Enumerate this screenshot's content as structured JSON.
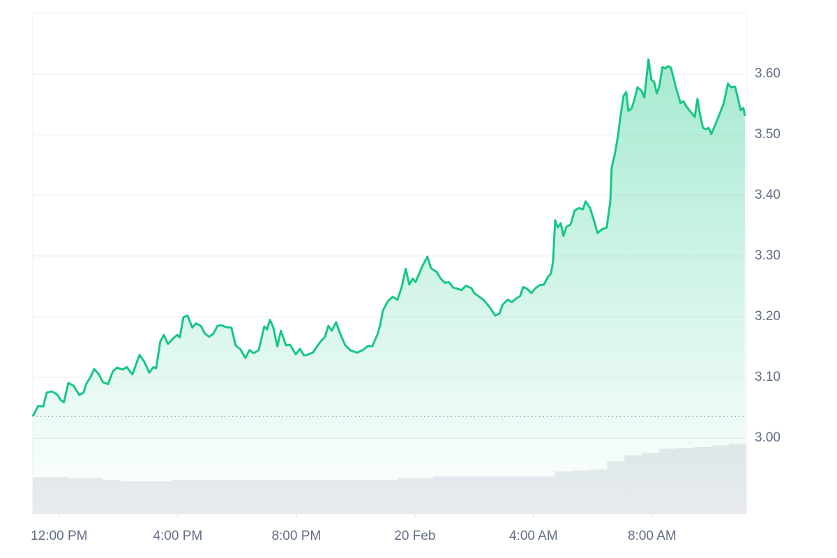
{
  "chart_data": {
    "type": "area",
    "x": [
      -0.89,
      -0.71,
      -0.54,
      -0.42,
      -0.24,
      -0.07,
      0.05,
      0.16,
      0.31,
      0.49,
      0.68,
      0.82,
      0.92,
      1.06,
      1.18,
      1.34,
      1.48,
      1.65,
      1.81,
      1.95,
      2.14,
      2.28,
      2.47,
      2.61,
      2.71,
      2.87,
      3.04,
      3.18,
      3.27,
      3.41,
      3.53,
      3.67,
      3.84,
      3.98,
      4.07,
      4.19,
      4.33,
      4.49,
      4.61,
      4.78,
      4.92,
      5.06,
      5.2,
      5.34,
      5.48,
      5.62,
      5.81,
      5.95,
      6.12,
      6.28,
      6.42,
      6.56,
      6.73,
      6.92,
      7.01,
      7.11,
      7.22,
      7.36,
      7.48,
      7.65,
      7.79,
      7.98,
      8.12,
      8.26,
      8.4,
      8.56,
      8.71,
      8.85,
      8.96,
      9.08,
      9.2,
      9.34,
      9.48,
      9.65,
      9.84,
      10.05,
      10.24,
      10.42,
      10.56,
      10.73,
      10.82,
      10.92,
      11.08,
      11.25,
      11.41,
      11.55,
      11.69,
      11.81,
      11.93,
      12.02,
      12.12,
      12.24,
      12.42,
      12.54,
      12.73,
      12.87,
      13.01,
      13.15,
      13.29,
      13.44,
      13.58,
      13.72,
      13.91,
      14.0,
      14.14,
      14.31,
      14.52,
      14.71,
      14.85,
      14.96,
      15.13,
      15.27,
      15.41,
      15.55,
      15.65,
      15.79,
      15.93,
      16.07,
      16.21,
      16.35,
      16.49,
      16.59,
      16.66,
      16.73,
      16.82,
      16.92,
      17.01,
      17.11,
      17.25,
      17.39,
      17.53,
      17.67,
      17.76,
      17.91,
      18.05,
      18.16,
      18.31,
      18.47,
      18.59,
      18.64,
      18.75,
      18.85,
      18.94,
      19.04,
      19.13,
      19.2,
      19.32,
      19.41,
      19.51,
      19.65,
      19.74,
      19.88,
      19.98,
      20.07,
      20.16,
      20.24,
      20.35,
      20.45,
      20.54,
      20.64,
      20.73,
      20.82,
      20.96,
      21.06,
      21.15,
      21.29,
      21.44,
      21.53,
      21.62,
      21.72,
      21.81,
      21.91,
      22.0,
      22.14,
      22.28,
      22.42,
      22.56,
      22.66,
      22.8,
      22.89,
      22.99,
      23.08,
      23.13
    ],
    "series": [
      {
        "color": "#16c784",
        "values": [
          3.036,
          3.053,
          3.052,
          3.075,
          3.077,
          3.072,
          3.063,
          3.059,
          3.091,
          3.086,
          3.071,
          3.075,
          3.09,
          3.101,
          3.114,
          3.105,
          3.092,
          3.089,
          3.11,
          3.116,
          3.113,
          3.117,
          3.105,
          3.124,
          3.137,
          3.126,
          3.108,
          3.117,
          3.115,
          3.159,
          3.17,
          3.155,
          3.164,
          3.17,
          3.166,
          3.199,
          3.202,
          3.182,
          3.189,
          3.185,
          3.172,
          3.167,
          3.172,
          3.185,
          3.186,
          3.183,
          3.182,
          3.153,
          3.146,
          3.132,
          3.145,
          3.14,
          3.145,
          3.184,
          3.179,
          3.195,
          3.183,
          3.151,
          3.177,
          3.153,
          3.154,
          3.138,
          3.147,
          3.136,
          3.138,
          3.141,
          3.152,
          3.161,
          3.166,
          3.185,
          3.177,
          3.191,
          3.172,
          3.153,
          3.144,
          3.141,
          3.145,
          3.152,
          3.151,
          3.17,
          3.185,
          3.21,
          3.225,
          3.233,
          3.228,
          3.248,
          3.279,
          3.253,
          3.263,
          3.257,
          3.268,
          3.282,
          3.299,
          3.28,
          3.274,
          3.263,
          3.256,
          3.257,
          3.248,
          3.246,
          3.244,
          3.251,
          3.247,
          3.239,
          3.234,
          3.228,
          3.216,
          3.202,
          3.205,
          3.22,
          3.228,
          3.224,
          3.23,
          3.234,
          3.249,
          3.246,
          3.239,
          3.247,
          3.252,
          3.253,
          3.266,
          3.271,
          3.291,
          3.359,
          3.347,
          3.354,
          3.333,
          3.348,
          3.352,
          3.375,
          3.379,
          3.377,
          3.39,
          3.379,
          3.357,
          3.338,
          3.344,
          3.347,
          3.389,
          3.446,
          3.469,
          3.498,
          3.532,
          3.564,
          3.57,
          3.539,
          3.544,
          3.559,
          3.578,
          3.572,
          3.561,
          3.624,
          3.59,
          3.587,
          3.568,
          3.578,
          3.611,
          3.609,
          3.613,
          3.61,
          3.592,
          3.575,
          3.552,
          3.555,
          3.547,
          3.538,
          3.529,
          3.559,
          3.532,
          3.511,
          3.509,
          3.511,
          3.501,
          3.517,
          3.534,
          3.552,
          3.584,
          3.578,
          3.579,
          3.561,
          3.54,
          3.544,
          3.531
        ]
      }
    ],
    "xlim": [
      -0.89,
      23.18
    ],
    "xticks": [
      {
        "value": 0,
        "label": "12:00 PM"
      },
      {
        "value": 4,
        "label": "4:00 PM"
      },
      {
        "value": 8,
        "label": "8:00 PM"
      },
      {
        "value": 12,
        "label": "20 Feb"
      },
      {
        "value": 16,
        "label": "4:00 AM"
      },
      {
        "value": 20,
        "label": "8:00 AM"
      }
    ],
    "ylim": [
      2.875,
      3.701
    ],
    "yticks": [
      {
        "value": 3,
        "label": "3.00"
      },
      {
        "value": 3.1,
        "label": "3.10"
      },
      {
        "value": 3.2,
        "label": "3.20"
      },
      {
        "value": 3.3,
        "label": "3.30"
      },
      {
        "value": 3.4,
        "label": "3.40"
      },
      {
        "value": 3.5,
        "label": "3.50"
      },
      {
        "value": 3.6,
        "label": "3.60"
      }
    ],
    "grid": true,
    "volume": {
      "color": "#e8eaef",
      "values": [
        44,
        44,
        43,
        43,
        41,
        39,
        39,
        39,
        41,
        41,
        41,
        41,
        41,
        41,
        41,
        41,
        41,
        41,
        41,
        41,
        41,
        43,
        43,
        45,
        45,
        45,
        45,
        45,
        45,
        45,
        51,
        52,
        53,
        63,
        70,
        73,
        78,
        79,
        80,
        82,
        84
      ]
    },
    "y2lim": [
      0,
      100
    ]
  }
}
